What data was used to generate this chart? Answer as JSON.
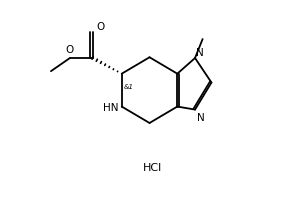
{
  "background_color": "#ffffff",
  "line_color": "#000000",
  "figsize": [
    2.94,
    2.05
  ],
  "dpi": 100,
  "HCl_label": "HCl",
  "NH_label": "HN",
  "N_label": "N",
  "N_methyl_label": "N",
  "O_ether_label": "O",
  "O_carbonyl_label": "O",
  "stereo_label": "&1",
  "font_size": 7.5
}
